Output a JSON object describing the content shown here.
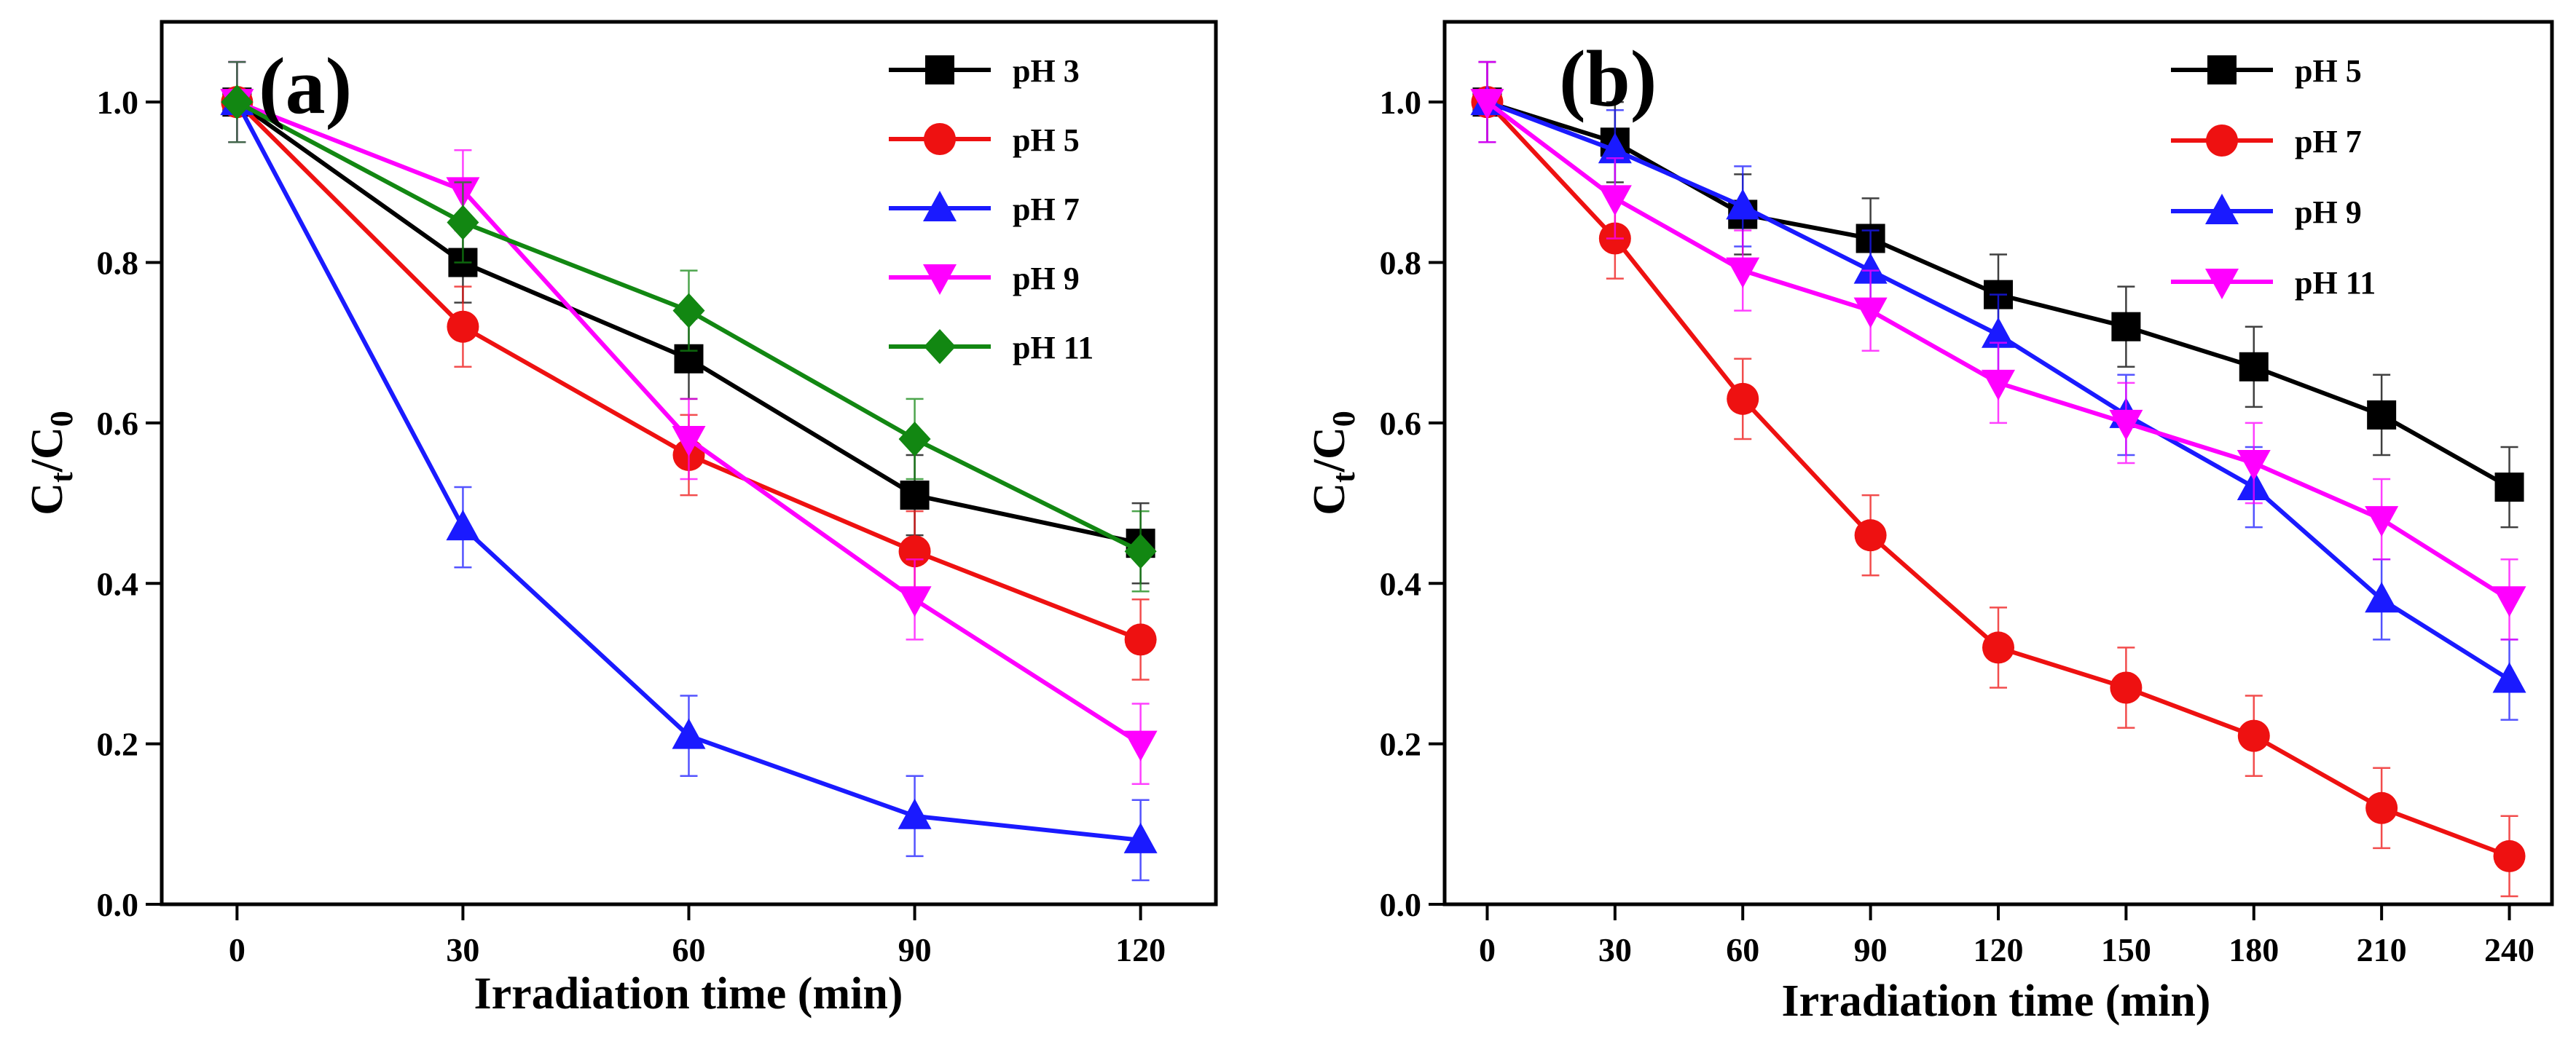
{
  "figure": {
    "colors": {
      "black": "#000000",
      "red": "#ee1111",
      "blue": "#1a1aff",
      "magenta": "#ff00ff",
      "green": "#128712"
    }
  },
  "chart_data": [
    {
      "type": "line",
      "panel_label": "(a)",
      "title": "",
      "xlabel": "Irradiation time (min)",
      "ylabel_main": "C",
      "ylabel_sub1": "t",
      "ylabel_slash": "/C",
      "ylabel_sub2": "0",
      "x": [
        0,
        30,
        60,
        90,
        120
      ],
      "xlim": [
        -10,
        130
      ],
      "ylim": [
        0,
        1.1
      ],
      "xticks": [
        0,
        30,
        60,
        90,
        120
      ],
      "yticks": [
        0.0,
        0.2,
        0.4,
        0.6,
        0.8,
        1.0
      ],
      "xtick_labels": [
        "0",
        "30",
        "60",
        "90",
        "120"
      ],
      "ytick_labels": [
        "0.0",
        "0.2",
        "0.4",
        "0.6",
        "0.8",
        "1.0"
      ],
      "error_bar": 0.05,
      "legend_position": "top-right",
      "series": [
        {
          "name": "pH 3",
          "color": "#000000",
          "marker": "square",
          "values": [
            1.0,
            0.8,
            0.68,
            0.51,
            0.45
          ]
        },
        {
          "name": "pH 5",
          "color": "#ee1111",
          "marker": "circle",
          "values": [
            1.0,
            0.72,
            0.56,
            0.44,
            0.33
          ]
        },
        {
          "name": "pH 7",
          "color": "#1a1aff",
          "marker": "triangle-up",
          "values": [
            1.0,
            0.47,
            0.21,
            0.11,
            0.08
          ]
        },
        {
          "name": "pH 9",
          "color": "#ff00ff",
          "marker": "triangle-down",
          "values": [
            1.0,
            0.89,
            0.58,
            0.38,
            0.2
          ]
        },
        {
          "name": "pH 11",
          "color": "#128712",
          "marker": "diamond",
          "values": [
            1.0,
            0.85,
            0.74,
            0.58,
            0.44
          ]
        }
      ]
    },
    {
      "type": "line",
      "panel_label": "(b)",
      "title": "",
      "xlabel": "Irradiation time (min)",
      "ylabel_main": "C",
      "ylabel_sub1": "t",
      "ylabel_slash": "/C",
      "ylabel_sub2": "0",
      "x": [
        0,
        30,
        60,
        90,
        120,
        150,
        180,
        210,
        240
      ],
      "xlim": [
        -10,
        250
      ],
      "ylim": [
        0,
        1.1
      ],
      "xticks": [
        0,
        30,
        60,
        90,
        120,
        150,
        180,
        210,
        240
      ],
      "yticks": [
        0.0,
        0.2,
        0.4,
        0.6,
        0.8,
        1.0
      ],
      "xtick_labels": [
        "0",
        "30",
        "60",
        "90",
        "120",
        "150",
        "180",
        "210",
        "240"
      ],
      "ytick_labels": [
        "0.0",
        "0.2",
        "0.4",
        "0.6",
        "0.8",
        "1.0"
      ],
      "error_bar": 0.05,
      "legend_position": "top-right",
      "series": [
        {
          "name": "pH 5",
          "color": "#000000",
          "marker": "square",
          "values": [
            1.0,
            0.95,
            0.86,
            0.83,
            0.76,
            0.72,
            0.67,
            0.61,
            0.52
          ]
        },
        {
          "name": "pH 7",
          "color": "#ee1111",
          "marker": "circle",
          "values": [
            1.0,
            0.83,
            0.63,
            0.46,
            0.32,
            0.27,
            0.21,
            0.12,
            0.06
          ]
        },
        {
          "name": "pH 9",
          "color": "#1a1aff",
          "marker": "triangle-up",
          "values": [
            1.0,
            0.94,
            0.87,
            0.79,
            0.71,
            0.61,
            0.52,
            0.38,
            0.28
          ]
        },
        {
          "name": "pH 11",
          "color": "#ff00ff",
          "marker": "triangle-down",
          "values": [
            1.0,
            0.88,
            0.79,
            0.74,
            0.65,
            0.6,
            0.55,
            0.48,
            0.38
          ]
        }
      ]
    }
  ]
}
